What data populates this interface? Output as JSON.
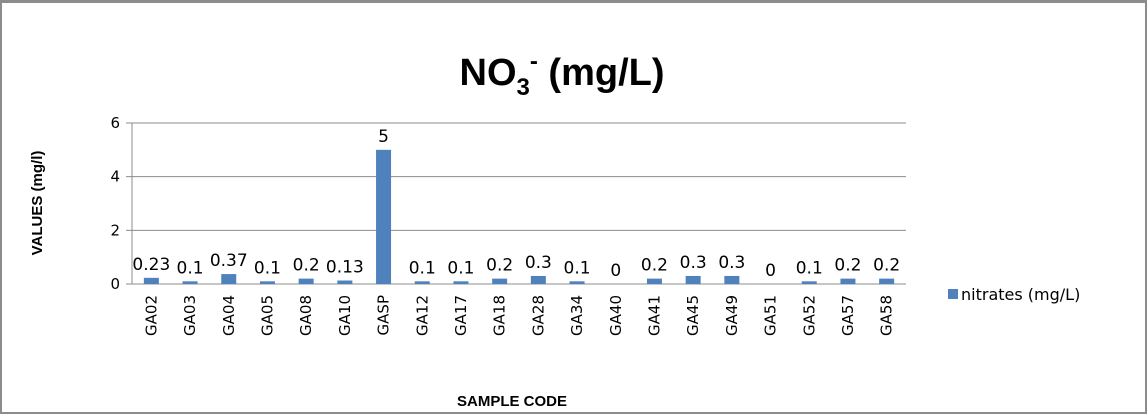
{
  "chart_data": {
    "type": "bar",
    "title_main": "NO",
    "title_sub": "3",
    "title_sup": "-",
    "title_rest": " (mg/L)",
    "xlabel": "SAMPLE CODE",
    "ylabel": "VALUES (mg/l)",
    "ylim": [
      0,
      6
    ],
    "yticks": [
      0,
      2,
      4,
      6
    ],
    "grid": true,
    "legend_position": "right",
    "categories": [
      "GA02",
      "GA03",
      "GA04",
      "GA05",
      "GA08",
      "GA10",
      "GASP",
      "GA12",
      "GA17",
      "GA18",
      "GA28",
      "GA34",
      "GA40",
      "GA41",
      "GA45",
      "GA49",
      "GA51",
      "GA52",
      "GA57",
      "GA58"
    ],
    "series": [
      {
        "name": "nitrates (mg/L)",
        "color": "#4f81bd",
        "values": [
          0.23,
          0.1,
          0.37,
          0.1,
          0.2,
          0.13,
          5,
          0.1,
          0.1,
          0.2,
          0.3,
          0.1,
          0,
          0.2,
          0.3,
          0.3,
          0,
          0.1,
          0.2,
          0.2
        ]
      }
    ]
  }
}
